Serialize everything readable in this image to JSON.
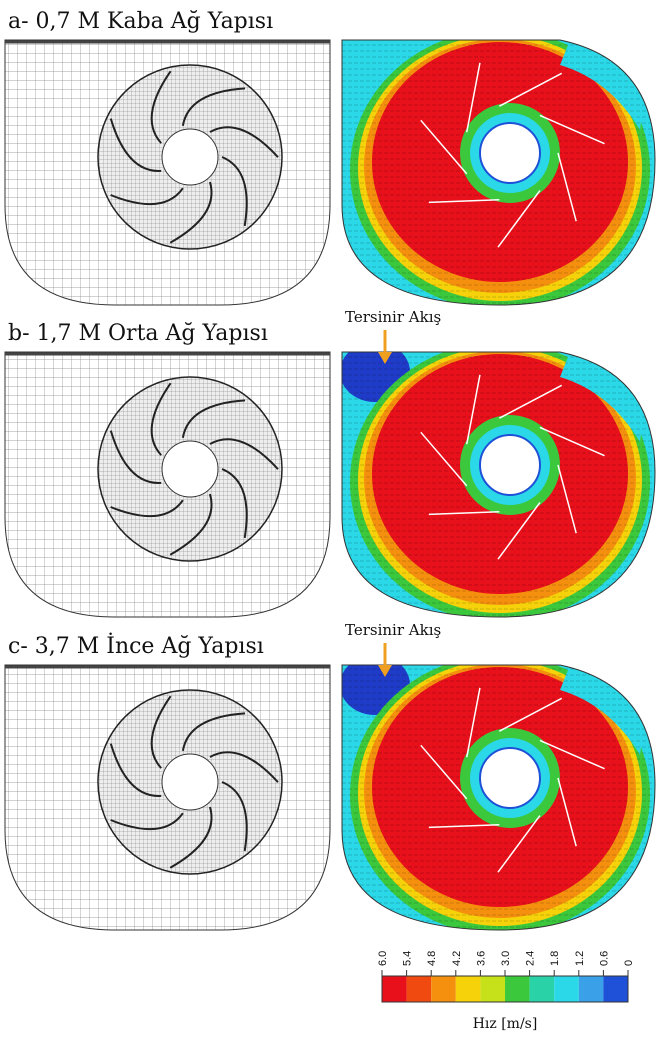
{
  "panels": [
    {
      "title": "a- 0,7 M Kaba Ağ Yapısı"
    },
    {
      "title": "b- 1,7 M Orta Ağ Yapısı",
      "annotation": "Tersinir Akış"
    },
    {
      "title": "c- 3,7 M İnce Ağ Yapısı",
      "annotation": "Tersinir Akış"
    }
  ],
  "colorbar": {
    "ticks": [
      {
        "value": 6,
        "label": "6.0"
      },
      5.4,
      4.8,
      4.2,
      3.6,
      {
        "value": 3,
        "label": "3.0"
      },
      2.4,
      1.8,
      1.2,
      0.6,
      0
    ],
    "colors": [
      "#e8101a",
      "#f04a10",
      "#f5900e",
      "#f5d20a",
      "#c6e01a",
      "#3cc83c",
      "#2ad2a8",
      "#2ad8e8",
      "#3aa0e8",
      "#1e50d8"
    ],
    "label": "Hız [m/s]"
  }
}
